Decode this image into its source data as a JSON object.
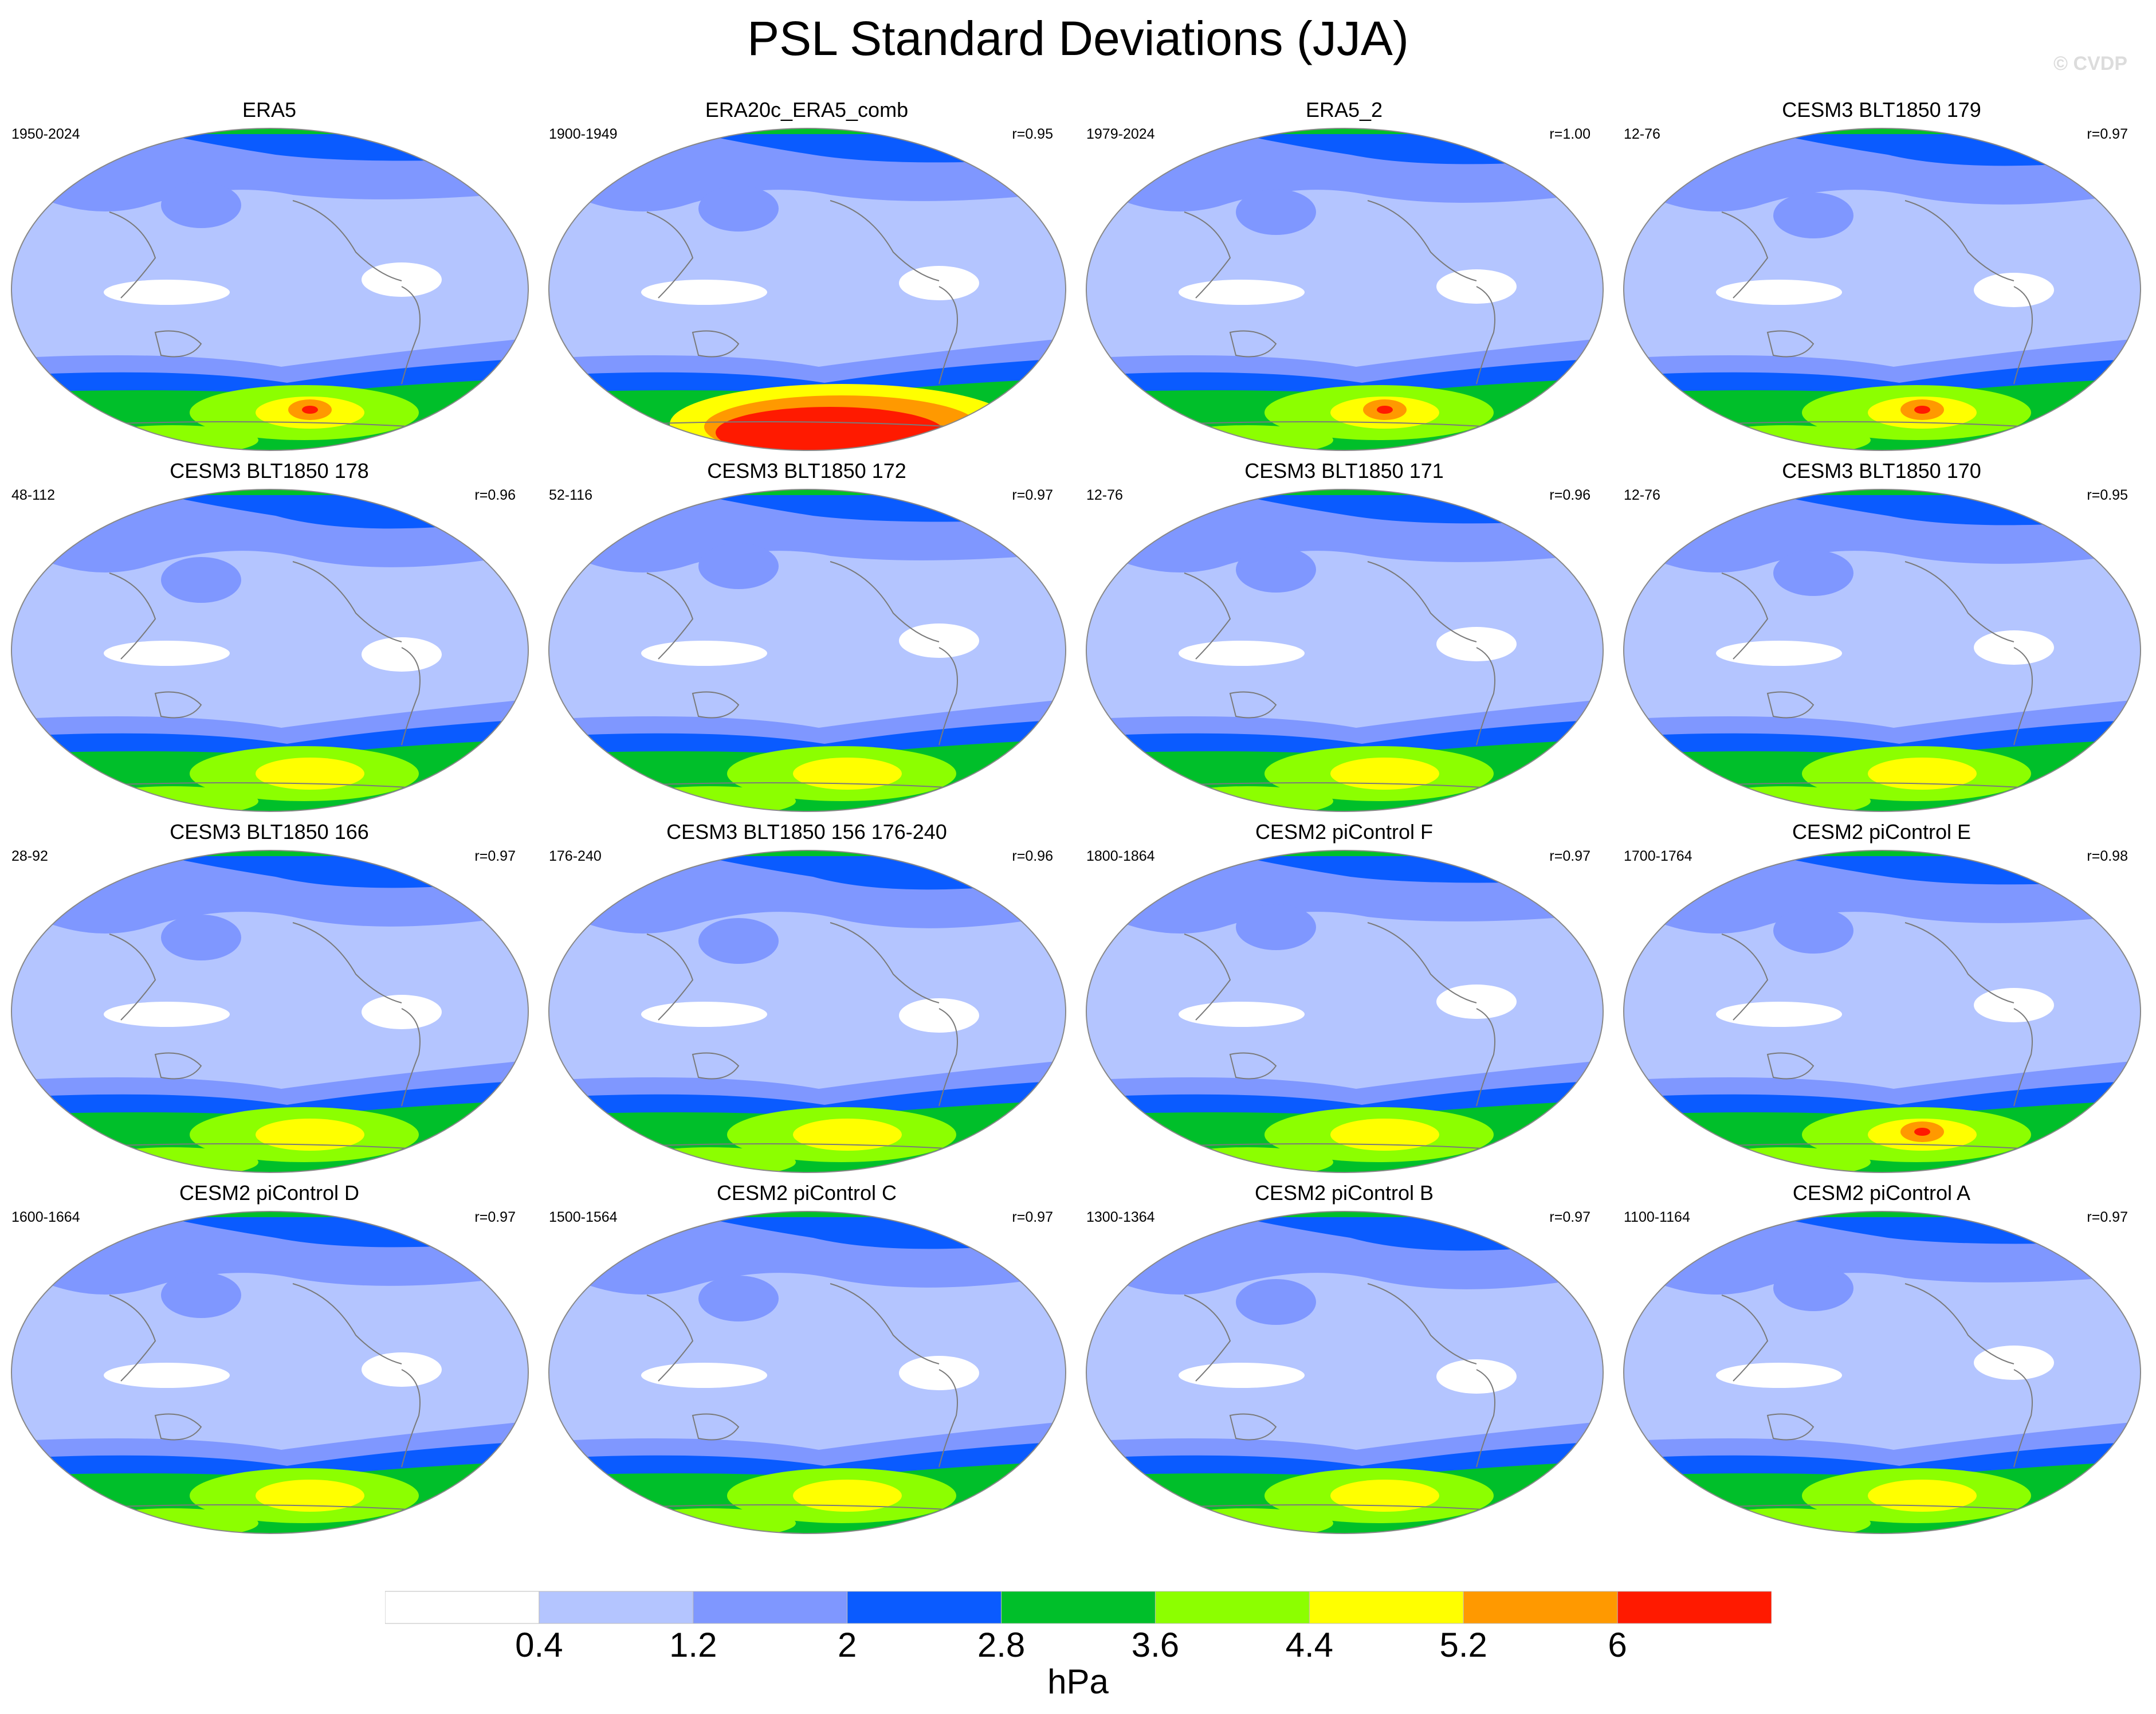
{
  "title": "PSL Standard Deviations (JJA)",
  "copyright": "© CVDP",
  "colorbar": {
    "units": "hPa",
    "ticks": [
      "0.4",
      "1.2",
      "2",
      "2.8",
      "3.6",
      "4.4",
      "5.2",
      "6"
    ],
    "colors": [
      "#ffffff",
      "#b4c5ff",
      "#7f97ff",
      "#0a5bff",
      "#00bf2a",
      "#8cff00",
      "#ffff00",
      "#ff9900",
      "#ff1a00"
    ]
  },
  "panels": [
    {
      "title": "ERA5",
      "period": "1950-2024",
      "corr": ""
    },
    {
      "title": "ERA20c_ERA5_comb",
      "period": "1900-1949",
      "corr": "r=0.95"
    },
    {
      "title": "ERA5_2",
      "period": "1979-2024",
      "corr": "r=1.00"
    },
    {
      "title": "CESM3 BLT1850 179",
      "period": "12-76",
      "corr": "r=0.97"
    },
    {
      "title": "CESM3 BLT1850 178",
      "period": "48-112",
      "corr": "r=0.96"
    },
    {
      "title": "CESM3 BLT1850 172",
      "period": "52-116",
      "corr": "r=0.97"
    },
    {
      "title": "CESM3 BLT1850 171",
      "period": "12-76",
      "corr": "r=0.96"
    },
    {
      "title": "CESM3 BLT1850 170",
      "period": "12-76",
      "corr": "r=0.95"
    },
    {
      "title": "CESM3 BLT1850 166",
      "period": "28-92",
      "corr": "r=0.97"
    },
    {
      "title": "CESM3 BLT1850 156 176-240",
      "period": "176-240",
      "corr": "r=0.96"
    },
    {
      "title": "CESM2 piControl F",
      "period": "1800-1864",
      "corr": "r=0.97"
    },
    {
      "title": "CESM2 piControl E",
      "period": "1700-1764",
      "corr": "r=0.98"
    },
    {
      "title": "CESM2 piControl D",
      "period": "1600-1664",
      "corr": "r=0.97"
    },
    {
      "title": "CESM2 piControl C",
      "period": "1500-1564",
      "corr": "r=0.97"
    },
    {
      "title": "CESM2 piControl B",
      "period": "1300-1364",
      "corr": "r=0.97"
    },
    {
      "title": "CESM2 piControl A",
      "period": "1100-1164",
      "corr": "r=0.97"
    }
  ]
}
